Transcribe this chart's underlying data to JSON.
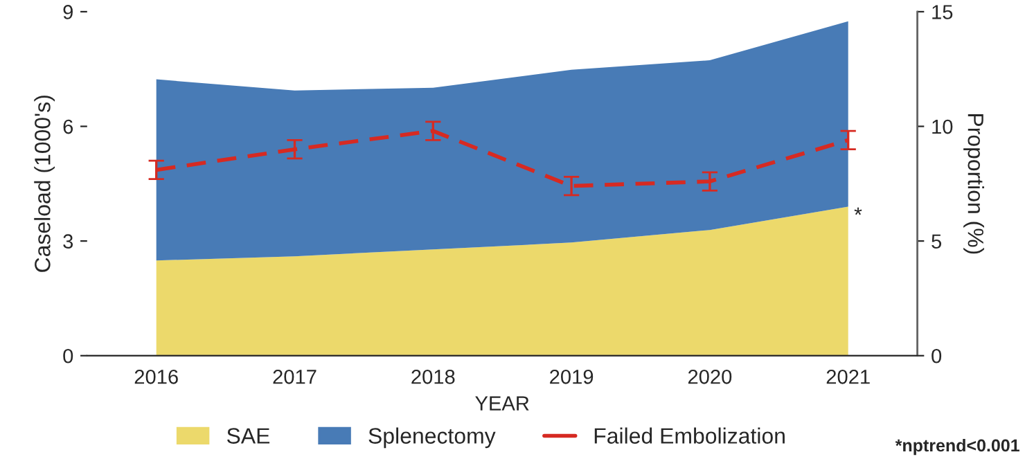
{
  "chart_data": {
    "type": "area",
    "stacked": true,
    "xlabel": "YEAR",
    "ylabel": "Caseload (1000's)",
    "y2label": "Proportion (%)",
    "categories": [
      "2016",
      "2017",
      "2018",
      "2019",
      "2020",
      "2021"
    ],
    "series": [
      {
        "name": "SAE",
        "color": "#ecd96b",
        "values": [
          2.49,
          2.6,
          2.78,
          2.96,
          3.29,
          3.9
        ]
      },
      {
        "name": "Splenectomy",
        "color": "#487bb6",
        "values": [
          4.74,
          4.34,
          4.23,
          4.52,
          4.44,
          4.85
        ]
      },
      {
        "name": "Failed Embolization",
        "type": "line",
        "axis": "y2",
        "color": "#d62a22",
        "line_style": "dashed",
        "values": [
          8.1,
          9.0,
          9.8,
          7.4,
          7.6,
          9.4
        ],
        "errors": [
          0.4,
          0.4,
          0.4,
          0.4,
          0.4,
          0.4
        ]
      }
    ],
    "ylim": [
      0,
      9
    ],
    "yticks": [
      0,
      3,
      6,
      9
    ],
    "y2lim": [
      0,
      15
    ],
    "y2ticks": [
      0,
      5,
      10,
      15
    ],
    "grid": false,
    "legend": "bottom",
    "marker": "none",
    "annotations": [
      {
        "text": "*",
        "x": "2021",
        "y": 3.9
      },
      "*nptrend<0.001"
    ]
  }
}
